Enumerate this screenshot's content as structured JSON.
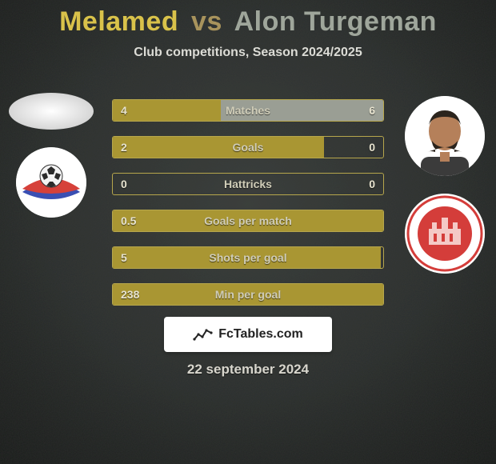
{
  "background": {
    "vignette_colors": [
      "#3a3f3b",
      "#2b2f2d",
      "#141815"
    ],
    "noise_opacity": 0.35
  },
  "title": {
    "player1": "Melamed",
    "vs": "vs",
    "player2": "Alon Turgeman",
    "color_player1": "#d9c24a",
    "color_vs": "#a8935c",
    "color_player2": "#9fa69b",
    "fontsize": 34
  },
  "subtitle": {
    "text": "Club competitions, Season 2024/2025",
    "color": "#dcdcd6",
    "fontsize": 16
  },
  "left_side": {
    "player_avatar": {
      "type": "ellipse-placeholder"
    },
    "club_crest": {
      "bg": "#ffffff",
      "swoosh_colors": [
        "#3a4fb3",
        "#d6413a"
      ],
      "ball_color": "#2b2b2b"
    }
  },
  "right_side": {
    "player_photo": {
      "bg": "#ffffff",
      "skin": "#b5805a",
      "hair": "#2b241d",
      "shirt": "#3b3b3b"
    },
    "club_crest": {
      "ring_bg": "#ffffff",
      "ring_border": "#d43d3a",
      "inner_bg": "#d43d3a",
      "building": "#f4c9c6"
    }
  },
  "bars": {
    "border_color": "#b6a64c",
    "left_fill_color": "#a99633",
    "right_fill_color": "#9a9e94",
    "label_color": "#d0cdb8",
    "value_color": "#e7e3cf",
    "fontsize": 14,
    "rows": [
      {
        "label": "Matches",
        "left_val": "4",
        "right_val": "6",
        "left_pct": 40,
        "right_pct": 60
      },
      {
        "label": "Goals",
        "left_val": "2",
        "right_val": "0",
        "left_pct": 78,
        "right_pct": 0
      },
      {
        "label": "Hattricks",
        "left_val": "0",
        "right_val": "0",
        "left_pct": 0,
        "right_pct": 0
      },
      {
        "label": "Goals per match",
        "left_val": "0.5",
        "right_val": "",
        "left_pct": 100,
        "right_pct": 0
      },
      {
        "label": "Shots per goal",
        "left_val": "5",
        "right_val": "",
        "left_pct": 99,
        "right_pct": 0
      },
      {
        "label": "Min per goal",
        "left_val": "238",
        "right_val": "",
        "left_pct": 100,
        "right_pct": 0
      }
    ]
  },
  "footer": {
    "logo_text": "FcTables.com",
    "icon_stroke": "#222222",
    "bg": "#ffffff"
  },
  "date": {
    "text": "22 september 2024",
    "color": "#d8d6cd",
    "fontsize": 17
  }
}
